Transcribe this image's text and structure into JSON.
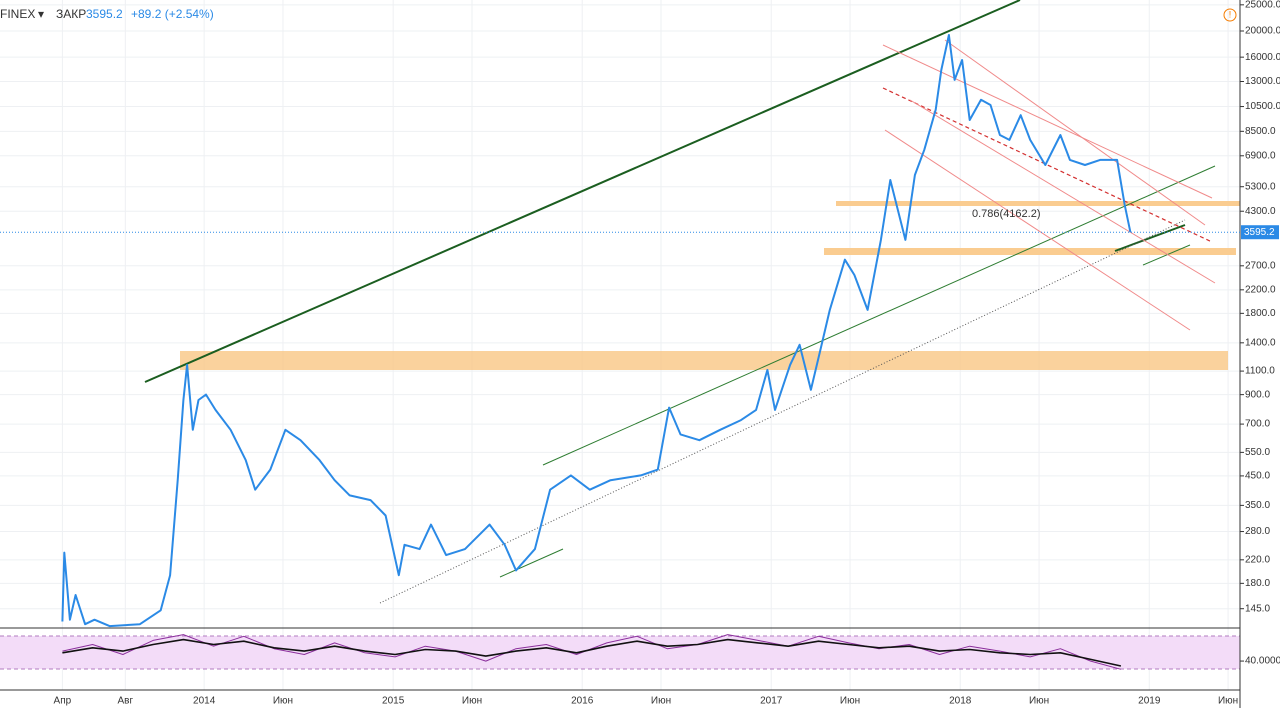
{
  "header": {
    "symbol": "FINEX",
    "close_label": "ЗАКР",
    "change": "+89.2 (+2.54%)"
  },
  "chart_data": [
    {
      "type": "line",
      "log_scale": true,
      "color": "#2b8ae6",
      "last_price": 3595.2,
      "annotation": "0.786(4162.2)",
      "grid": true,
      "x": [
        2013.25,
        2013.26,
        2013.29,
        2013.32,
        2013.37,
        2013.42,
        2013.5,
        2013.66,
        2013.77,
        2013.82,
        2013.86,
        2013.89,
        2013.91,
        2013.94,
        2013.97,
        2014.01,
        2014.06,
        2014.14,
        2014.22,
        2014.27,
        2014.35,
        2014.43,
        2014.51,
        2014.61,
        2014.69,
        2014.77,
        2014.88,
        2014.96,
        2015.03,
        2015.06,
        2015.14,
        2015.2,
        2015.28,
        2015.38,
        2015.51,
        2015.59,
        2015.65,
        2015.75,
        2015.83,
        2015.94,
        2016.04,
        2016.15,
        2016.31,
        2016.4,
        2016.46,
        2016.52,
        2016.62,
        2016.73,
        2016.84,
        2016.92,
        2016.98,
        2017.02,
        2017.1,
        2017.15,
        2017.21,
        2017.26,
        2017.31,
        2017.39,
        2017.44,
        2017.51,
        2017.58,
        2017.63,
        2017.71,
        2017.76,
        2017.81,
        2017.87,
        2017.9,
        2017.94,
        2017.97,
        2018.01,
        2018.05,
        2018.11,
        2018.16,
        2018.21,
        2018.26,
        2018.32,
        2018.37,
        2018.45,
        2018.53,
        2018.58,
        2018.66,
        2018.74,
        2018.83,
        2018.87,
        2018.9
      ],
      "values": [
        130,
        234,
        132,
        163,
        127,
        132,
        125,
        127,
        143,
        193,
        434,
        860,
        1160,
        667,
        860,
        900,
        790,
        667,
        515,
        400,
        475,
        667,
        610,
        515,
        434,
        381,
        366,
        321,
        193,
        250,
        241,
        297,
        229,
        241,
        297,
        250,
        201,
        241,
        400,
        452,
        400,
        434,
        452,
        475,
        806,
        641,
        610,
        667,
        724,
        790,
        1111,
        790,
        1160,
        1376,
        938,
        1318,
        1854,
        2845,
        2496,
        1854,
        3367,
        5610,
        3367,
        5856,
        7258,
        10220,
        14340,
        19330,
        13180,
        15620,
        9360,
        11120,
        10640,
        8240,
        7900,
        9750,
        7900,
        6380,
        8240,
        6660,
        6380,
        6660,
        6660,
        4540,
        3595.2
      ],
      "xlim": [
        2012.92,
        2019.48
      ],
      "ylim": [
        123,
        26050
      ],
      "xticks": [
        {
          "value": 2013.25,
          "label": "Апр"
        },
        {
          "value": 2013.583,
          "label": "Авг"
        },
        2014,
        {
          "value": 2014.417,
          "label": "Июн"
        },
        2015,
        {
          "value": 2015.417,
          "label": "Июн"
        },
        2016,
        {
          "value": 2016.417,
          "label": "Июн"
        },
        2017,
        {
          "value": 2017.417,
          "label": "Июн"
        },
        2018,
        {
          "value": 2018.417,
          "label": "Июн"
        },
        2019,
        {
          "value": 2019.417,
          "label": "Июн"
        }
      ],
      "yticks": [
        {
          "value": 25000,
          "label": "25000.0"
        },
        {
          "value": 20000,
          "label": "20000.0"
        },
        {
          "value": 16000,
          "label": "16000.0"
        },
        {
          "value": 13000,
          "label": "13000.0"
        },
        {
          "value": 10500,
          "label": "10500.0"
        },
        {
          "value": 8500,
          "label": "8500.0"
        },
        {
          "value": 6900,
          "label": "6900.0"
        },
        {
          "value": 5300,
          "label": "5300.0"
        },
        {
          "value": 4300,
          "label": "4300.0"
        },
        {
          "value": 2700,
          "label": "2700.0"
        },
        {
          "value": 2200,
          "label": "2200.0"
        },
        {
          "value": 1800,
          "label": "1800.0"
        },
        {
          "value": 1400,
          "label": "1400.0"
        },
        {
          "value": 1100,
          "label": "1100.0"
        },
        {
          "value": 900,
          "label": "900.0"
        },
        {
          "value": 700,
          "label": "700.0"
        },
        {
          "value": 550,
          "label": "550.0"
        },
        {
          "value": 450,
          "label": "450.0"
        },
        {
          "value": 350,
          "label": "350.0"
        },
        {
          "value": 280,
          "label": "280.0"
        },
        {
          "value": 220,
          "label": "220.0"
        },
        {
          "value": 180,
          "label": "180.0"
        },
        {
          "value": 145,
          "label": "145.0"
        }
      ]
    },
    {
      "type": "line",
      "ylim": [
        5,
        80
      ],
      "yticks": [
        {
          "value": 40,
          "label": "40.0000"
        }
      ],
      "x": [
        2013.25,
        2013.41,
        2013.57,
        2013.73,
        2013.89,
        2014.05,
        2014.21,
        2014.37,
        2014.53,
        2014.69,
        2014.85,
        2015.01,
        2015.17,
        2015.33,
        2015.49,
        2015.65,
        2015.81,
        2015.97,
        2016.13,
        2016.29,
        2016.45,
        2016.61,
        2016.77,
        2016.93,
        2017.09,
        2017.25,
        2017.41,
        2017.57,
        2017.73,
        2017.89,
        2018.05,
        2018.21,
        2018.37,
        2018.53,
        2018.69,
        2018.85
      ],
      "series": [
        {
          "color": "#8b2f9c",
          "values": [
            52,
            60,
            48,
            65,
            72,
            58,
            70,
            55,
            48,
            62,
            50,
            45,
            58,
            52,
            40,
            55,
            60,
            48,
            62,
            70,
            55,
            60,
            72,
            65,
            58,
            70,
            62,
            55,
            60,
            48,
            58,
            52,
            45,
            55,
            40,
            30
          ]
        },
        {
          "color": "#111111",
          "values": [
            50,
            56,
            52,
            60,
            66,
            60,
            64,
            56,
            52,
            58,
            52,
            48,
            54,
            52,
            46,
            52,
            56,
            50,
            58,
            64,
            58,
            60,
            66,
            62,
            58,
            64,
            60,
            56,
            58,
            52,
            54,
            50,
            48,
            50,
            42,
            34
          ]
        }
      ]
    }
  ]
}
